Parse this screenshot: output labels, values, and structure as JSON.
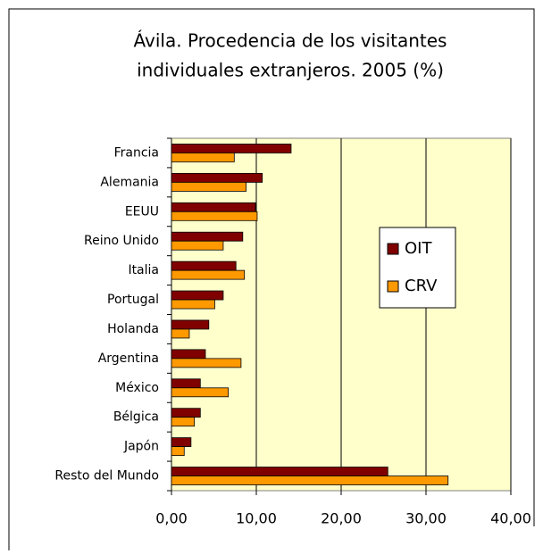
{
  "chart_data": {
    "type": "bar",
    "orientation": "horizontal",
    "title": [
      "Ávila. Procedencia de los visitantes",
      "individuales extranjeros. 2005 (%)"
    ],
    "categories": [
      "Francia",
      "Alemania",
      "EEUU",
      "Reino Unido",
      "Italia",
      "Portugal",
      "Holanda",
      "Argentina",
      "México",
      "Bélgica",
      "Japón",
      "Resto del Mundo"
    ],
    "series": [
      {
        "name": "OIT",
        "color": "#800000",
        "values": [
          14.1,
          10.7,
          9.9,
          8.4,
          7.6,
          6.1,
          4.4,
          4.0,
          3.4,
          3.4,
          2.3,
          25.5
        ]
      },
      {
        "name": "CRV",
        "color": "#ff9900",
        "values": [
          7.4,
          8.8,
          10.1,
          6.1,
          8.6,
          5.1,
          2.1,
          8.2,
          6.7,
          2.7,
          1.5,
          32.6
        ]
      }
    ],
    "xlim": [
      0,
      40
    ],
    "xticks": [
      {
        "value": 0,
        "label": "0,00"
      },
      {
        "value": 10,
        "label": "10,00"
      },
      {
        "value": 20,
        "label": "20,00"
      },
      {
        "value": 30,
        "label": "30,00"
      },
      {
        "value": 40,
        "label": "40,00"
      }
    ],
    "grid": true,
    "legend": "right"
  }
}
